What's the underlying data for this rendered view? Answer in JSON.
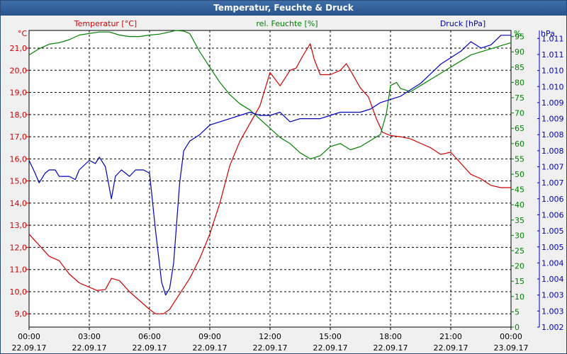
{
  "window": {
    "title": "Temperatur, Feuchte & Druck"
  },
  "colors": {
    "temperature": "#cc0000",
    "humidity": "#008000",
    "pressure": "#0000bb",
    "grid": "#000000",
    "plot_bg": "#ffffff"
  },
  "chart_data": {
    "type": "line",
    "title": "Temperatur, Feuchte & Druck",
    "grid": true,
    "x": {
      "tick_times": [
        "00:00",
        "03:00",
        "06:00",
        "09:00",
        "12:00",
        "15:00",
        "18:00",
        "21:00",
        "00:00"
      ],
      "tick_dates": [
        "22.09.17",
        "22.09.17",
        "22.09.17",
        "22.09.17",
        "22.09.17",
        "22.09.17",
        "22.09.17",
        "22.09.17",
        "23.09.17"
      ],
      "range_hours": [
        0,
        24
      ]
    },
    "axes": {
      "temperature": {
        "unit": "°C",
        "range": [
          8.4,
          21.8
        ],
        "ticks": [
          "9,0",
          "10,0",
          "11,0",
          "12,0",
          "13,0",
          "14,0",
          "15,0",
          "16,0",
          "17,0",
          "18,0",
          "19,0",
          "20,0",
          "21,0"
        ]
      },
      "humidity": {
        "unit": "%",
        "range": [
          0,
          97
        ],
        "ticks": [
          "0",
          "5",
          "10",
          "15",
          "20",
          "25",
          "30",
          "35",
          "40",
          "45",
          "50",
          "55",
          "60",
          "65",
          "70",
          "75",
          "80",
          "85",
          "90",
          "95"
        ]
      },
      "pressure": {
        "unit": "hPa",
        "range": [
          1002.0,
          1011.25
        ],
        "ticks": [
          "1.002",
          "1.003",
          "1.003",
          "1.004",
          "1.004",
          "1.005",
          "1.005",
          "1.006",
          "1.006",
          "1.007",
          "1.007",
          "1.008",
          "1.008",
          "1.009",
          "1.009",
          "1.010",
          "1.010",
          "1.011",
          "1.011"
        ]
      }
    },
    "series": [
      {
        "name": "Temperatur [°C]",
        "axis": "temperature",
        "color": "#cc0000",
        "points": [
          [
            0,
            12.6
          ],
          [
            0.5,
            12.1
          ],
          [
            1,
            11.6
          ],
          [
            1.5,
            11.4
          ],
          [
            2,
            10.8
          ],
          [
            2.5,
            10.4
          ],
          [
            3,
            10.2
          ],
          [
            3.4,
            10.05
          ],
          [
            3.8,
            10.1
          ],
          [
            4.1,
            10.6
          ],
          [
            4.5,
            10.5
          ],
          [
            5,
            10.0
          ],
          [
            5.5,
            9.6
          ],
          [
            6,
            9.2
          ],
          [
            6.3,
            9.0
          ],
          [
            6.7,
            9.0
          ],
          [
            7,
            9.2
          ],
          [
            7.5,
            9.9
          ],
          [
            8,
            10.6
          ],
          [
            8.5,
            11.5
          ],
          [
            9,
            12.6
          ],
          [
            9.5,
            14.0
          ],
          [
            10,
            15.7
          ],
          [
            10.5,
            16.8
          ],
          [
            11,
            17.6
          ],
          [
            11.5,
            18.4
          ],
          [
            12,
            19.9
          ],
          [
            12.5,
            19.3
          ],
          [
            13,
            20.0
          ],
          [
            13.3,
            20.1
          ],
          [
            13.6,
            20.6
          ],
          [
            14,
            21.2
          ],
          [
            14.2,
            20.5
          ],
          [
            14.5,
            19.8
          ],
          [
            15,
            19.8
          ],
          [
            15.5,
            20.0
          ],
          [
            15.8,
            20.3
          ],
          [
            16,
            20.0
          ],
          [
            16.5,
            19.2
          ],
          [
            16.9,
            18.8
          ],
          [
            17.3,
            17.8
          ],
          [
            17.6,
            17.2
          ],
          [
            18,
            17.05
          ],
          [
            18.5,
            17.0
          ],
          [
            19,
            16.9
          ],
          [
            19.5,
            16.7
          ],
          [
            20,
            16.5
          ],
          [
            20.5,
            16.2
          ],
          [
            21,
            16.3
          ],
          [
            21.3,
            16.0
          ],
          [
            21.7,
            15.6
          ],
          [
            22,
            15.3
          ],
          [
            22.5,
            15.1
          ],
          [
            23,
            14.8
          ],
          [
            23.5,
            14.7
          ],
          [
            24,
            14.7
          ]
        ]
      },
      {
        "name": "rel. Feuchte [%]",
        "axis": "humidity",
        "color": "#008000",
        "points": [
          [
            0,
            89
          ],
          [
            0.5,
            91
          ],
          [
            1,
            92.5
          ],
          [
            1.5,
            93
          ],
          [
            2,
            94
          ],
          [
            2.5,
            95.5
          ],
          [
            3,
            96
          ],
          [
            3.5,
            96.5
          ],
          [
            4,
            96.5
          ],
          [
            4.5,
            95.5
          ],
          [
            5,
            95
          ],
          [
            5.5,
            95
          ],
          [
            6,
            95.5
          ],
          [
            6.5,
            95.8
          ],
          [
            7,
            96.5
          ],
          [
            7.3,
            97
          ],
          [
            7.7,
            96.8
          ],
          [
            8,
            96
          ],
          [
            8.5,
            90
          ],
          [
            9,
            85
          ],
          [
            9.5,
            80
          ],
          [
            10,
            76
          ],
          [
            10.5,
            73
          ],
          [
            11,
            71
          ],
          [
            11.5,
            68
          ],
          [
            12,
            65
          ],
          [
            12.5,
            62
          ],
          [
            13,
            60
          ],
          [
            13.5,
            57
          ],
          [
            14,
            55
          ],
          [
            14.5,
            56
          ],
          [
            15,
            59
          ],
          [
            15.5,
            60
          ],
          [
            16,
            58
          ],
          [
            16.5,
            59
          ],
          [
            17,
            61
          ],
          [
            17.5,
            63
          ],
          [
            17.8,
            70
          ],
          [
            18,
            79
          ],
          [
            18.3,
            80
          ],
          [
            18.5,
            78
          ],
          [
            19,
            77
          ],
          [
            19.5,
            79
          ],
          [
            20,
            81
          ],
          [
            20.5,
            83
          ],
          [
            21,
            85
          ],
          [
            21.5,
            87
          ],
          [
            22,
            89
          ],
          [
            22.5,
            90
          ],
          [
            23,
            91
          ],
          [
            23.5,
            92
          ],
          [
            24,
            93
          ]
        ]
      },
      {
        "name": "Druck [hPa]",
        "axis": "pressure",
        "color": "#0000bb",
        "points": [
          [
            0,
            1007.2
          ],
          [
            0.3,
            1006.8
          ],
          [
            0.5,
            1006.5
          ],
          [
            0.8,
            1006.8
          ],
          [
            1,
            1006.9
          ],
          [
            1.3,
            1006.9
          ],
          [
            1.5,
            1006.7
          ],
          [
            2,
            1006.7
          ],
          [
            2.3,
            1006.6
          ],
          [
            2.5,
            1006.9
          ],
          [
            3,
            1007.2
          ],
          [
            3.3,
            1007.1
          ],
          [
            3.5,
            1007.3
          ],
          [
            3.8,
            1007.0
          ],
          [
            4.1,
            1006.0
          ],
          [
            4.3,
            1006.7
          ],
          [
            4.6,
            1006.9
          ],
          [
            5,
            1006.7
          ],
          [
            5.3,
            1006.9
          ],
          [
            5.7,
            1006.9
          ],
          [
            6,
            1006.8
          ],
          [
            6.3,
            1005.0
          ],
          [
            6.6,
            1003.4
          ],
          [
            6.8,
            1003.0
          ],
          [
            7,
            1003.2
          ],
          [
            7.2,
            1004.0
          ],
          [
            7.5,
            1006.5
          ],
          [
            7.7,
            1007.5
          ],
          [
            8,
            1007.8
          ],
          [
            8.5,
            1008.0
          ],
          [
            9,
            1008.3
          ],
          [
            9.5,
            1008.4
          ],
          [
            10,
            1008.5
          ],
          [
            10.5,
            1008.6
          ],
          [
            11,
            1008.7
          ],
          [
            11.5,
            1008.6
          ],
          [
            12,
            1008.6
          ],
          [
            12.5,
            1008.7
          ],
          [
            13,
            1008.4
          ],
          [
            13.5,
            1008.5
          ],
          [
            14,
            1008.5
          ],
          [
            14.5,
            1008.5
          ],
          [
            15,
            1008.6
          ],
          [
            15.5,
            1008.7
          ],
          [
            16,
            1008.7
          ],
          [
            16.5,
            1008.7
          ],
          [
            17,
            1008.8
          ],
          [
            17.5,
            1009.0
          ],
          [
            18,
            1009.1
          ],
          [
            18.5,
            1009.2
          ],
          [
            19,
            1009.4
          ],
          [
            19.5,
            1009.6
          ],
          [
            20,
            1009.9
          ],
          [
            20.5,
            1010.2
          ],
          [
            21,
            1010.4
          ],
          [
            21.5,
            1010.6
          ],
          [
            22,
            1010.9
          ],
          [
            22.5,
            1010.7
          ],
          [
            23,
            1010.8
          ],
          [
            23.5,
            1011.1
          ],
          [
            24,
            1011.1
          ]
        ]
      }
    ]
  }
}
